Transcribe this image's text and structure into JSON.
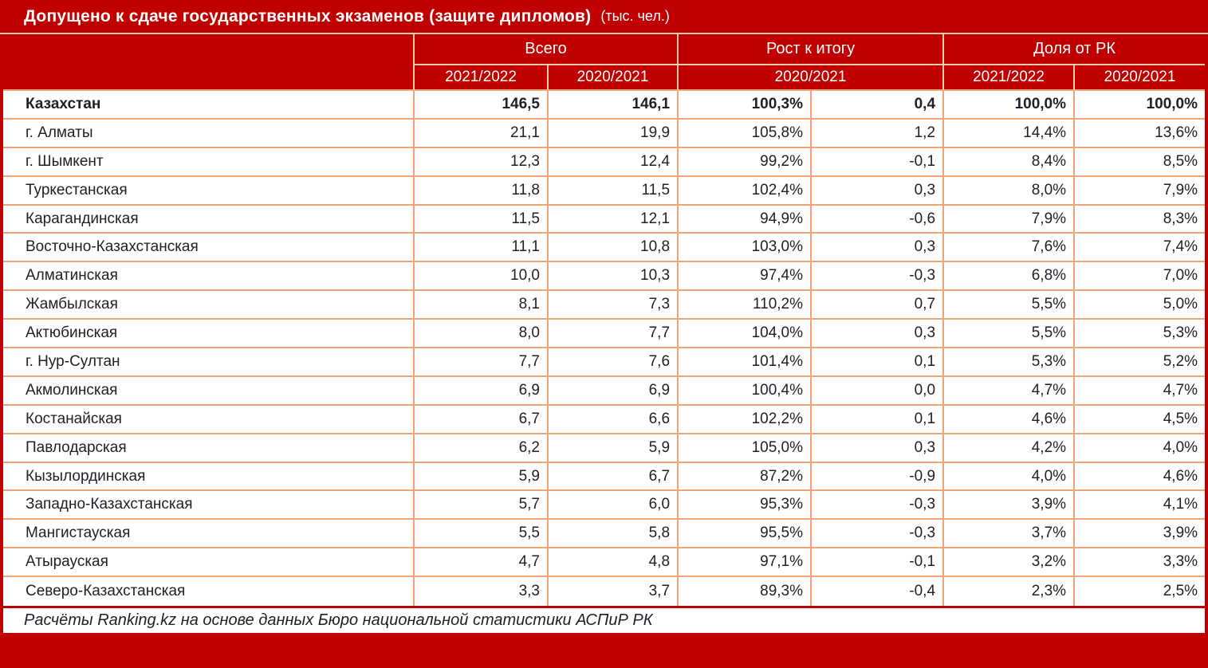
{
  "title": {
    "main": "Допущено к сдаче государственных экзаменов (защите дипломов)",
    "unit": "(тыс. чел.)"
  },
  "chart_data": {
    "type": "table",
    "title": "Допущено к сдаче государственных экзаменов (защите дипломов) (тыс. чел.)",
    "column_groups": [
      {
        "label": "Всего",
        "span": 2
      },
      {
        "label": "Рост к итогу",
        "span": 2
      },
      {
        "label": "Доля от РК",
        "span": 2
      }
    ],
    "sub_columns": [
      "2021/2022",
      "2020/2021",
      "2020/2021",
      "2021/2022",
      "2020/2021"
    ],
    "rows": [
      {
        "region": "Казахстан",
        "bold": true,
        "values": [
          "146,5",
          "146,1",
          "100,3%",
          "0,4",
          "100,0%",
          "100,0%"
        ]
      },
      {
        "region": "г. Алматы",
        "bold": false,
        "values": [
          "21,1",
          "19,9",
          "105,8%",
          "1,2",
          "14,4%",
          "13,6%"
        ]
      },
      {
        "region": "г. Шымкент",
        "bold": false,
        "values": [
          "12,3",
          "12,4",
          "99,2%",
          "-0,1",
          "8,4%",
          "8,5%"
        ]
      },
      {
        "region": "Туркестанская",
        "bold": false,
        "values": [
          "11,8",
          "11,5",
          "102,4%",
          "0,3",
          "8,0%",
          "7,9%"
        ]
      },
      {
        "region": "Карагандинская",
        "bold": false,
        "values": [
          "11,5",
          "12,1",
          "94,9%",
          "-0,6",
          "7,9%",
          "8,3%"
        ]
      },
      {
        "region": "Восточно-Казахстанская",
        "bold": false,
        "values": [
          "11,1",
          "10,8",
          "103,0%",
          "0,3",
          "7,6%",
          "7,4%"
        ]
      },
      {
        "region": "Алматинская",
        "bold": false,
        "values": [
          "10,0",
          "10,3",
          "97,4%",
          "-0,3",
          "6,8%",
          "7,0%"
        ]
      },
      {
        "region": "Жамбылская",
        "bold": false,
        "values": [
          "8,1",
          "7,3",
          "110,2%",
          "0,7",
          "5,5%",
          "5,0%"
        ]
      },
      {
        "region": "Актюбинская",
        "bold": false,
        "values": [
          "8,0",
          "7,7",
          "104,0%",
          "0,3",
          "5,5%",
          "5,3%"
        ]
      },
      {
        "region": "г. Нур-Султан",
        "bold": false,
        "values": [
          "7,7",
          "7,6",
          "101,4%",
          "0,1",
          "5,3%",
          "5,2%"
        ]
      },
      {
        "region": "Акмолинская",
        "bold": false,
        "values": [
          "6,9",
          "6,9",
          "100,4%",
          "0,0",
          "4,7%",
          "4,7%"
        ]
      },
      {
        "region": "Костанайская",
        "bold": false,
        "values": [
          "6,7",
          "6,6",
          "102,2%",
          "0,1",
          "4,6%",
          "4,5%"
        ]
      },
      {
        "region": "Павлодарская",
        "bold": false,
        "values": [
          "6,2",
          "5,9",
          "105,0%",
          "0,3",
          "4,2%",
          "4,0%"
        ]
      },
      {
        "region": "Кызылординская",
        "bold": false,
        "values": [
          "5,9",
          "6,7",
          "87,2%",
          "-0,9",
          "4,0%",
          "4,6%"
        ]
      },
      {
        "region": "Западно-Казахстанская",
        "bold": false,
        "values": [
          "5,7",
          "6,0",
          "95,3%",
          "-0,3",
          "3,9%",
          "4,1%"
        ]
      },
      {
        "region": "Мангистауская",
        "bold": false,
        "values": [
          "5,5",
          "5,8",
          "95,5%",
          "-0,3",
          "3,7%",
          "3,9%"
        ]
      },
      {
        "region": "Атырауская",
        "bold": false,
        "values": [
          "4,7",
          "4,8",
          "97,1%",
          "-0,1",
          "3,2%",
          "3,3%"
        ]
      },
      {
        "region": "Северо-Казахстанская",
        "bold": false,
        "values": [
          "3,3",
          "3,7",
          "89,3%",
          "-0,4",
          "2,3%",
          "2,5%"
        ]
      }
    ]
  },
  "footer": {
    "source": "Расчёты Ranking.kz на основе данных Бюро национальной статистики АСПиР РК"
  },
  "colors": {
    "accent_red": "#C00000",
    "body_border": "#F2A477",
    "header_divider": "#F8CBAD",
    "text": "#1F1F28"
  }
}
